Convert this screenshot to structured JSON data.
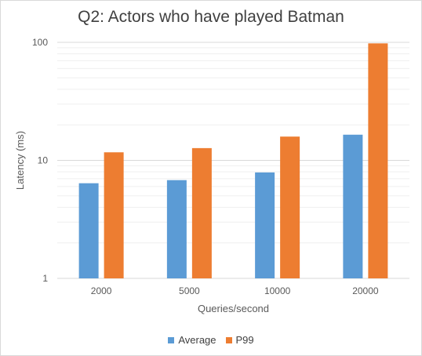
{
  "chart_data": {
    "type": "bar",
    "title": "Q2: Actors who have played Batman",
    "xlabel": "Queries/second",
    "ylabel": "Latency (ms)",
    "categories": [
      "2000",
      "5000",
      "10000",
      "20000"
    ],
    "yscale": "log",
    "ylim": [
      1,
      100
    ],
    "y_ticks": [
      "1",
      "10",
      "100"
    ],
    "series": [
      {
        "name": "Average",
        "color": "#5b9bd5",
        "values": [
          6.4,
          6.8,
          7.9,
          16.5
        ]
      },
      {
        "name": "P99",
        "color": "#ed7d31",
        "values": [
          11.7,
          12.7,
          15.9,
          98
        ]
      }
    ],
    "grid": true,
    "legend_position": "bottom"
  }
}
